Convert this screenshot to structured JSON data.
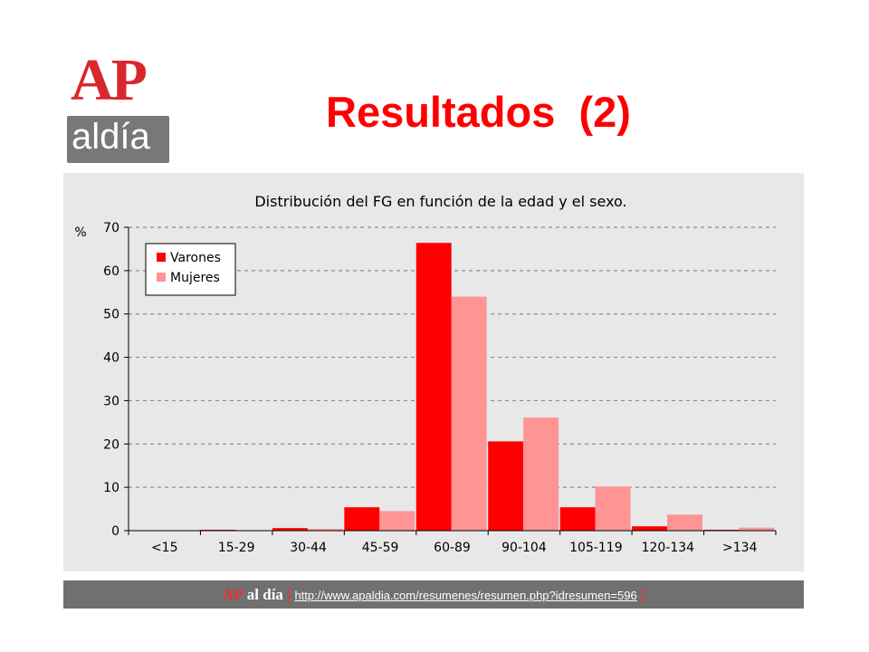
{
  "logo": {
    "top": "AP",
    "bottom": "aldía"
  },
  "page_title": "Resultados  (2)",
  "footer": {
    "brand_ap": "AP",
    "brand_aldia": "al día",
    "bracket_open": "[",
    "link": "http://www.apaldia.com/resumenes/resumen.php?idresumen=596",
    "bracket_close": "]"
  },
  "colors": {
    "title": "#ff0000",
    "varones": "#ff0000",
    "mujeres": "#ff9494",
    "panel_bg": "#e8e8e8",
    "footer_bg": "#707070"
  },
  "chart_data": {
    "type": "bar",
    "title": "Distribución del FG en función de la edad y el sexo.",
    "ylabel": "%",
    "xlabel": "",
    "categories": [
      "<15",
      "15-29",
      "30-44",
      "45-59",
      "60-89",
      "90-104",
      "105-119",
      "120-134",
      ">134"
    ],
    "series": [
      {
        "name": "Varones",
        "color": "#ff0000",
        "values": [
          0,
          0.2,
          0.6,
          5.4,
          66.4,
          20.6,
          5.4,
          1.0,
          0.2
        ]
      },
      {
        "name": "Mujeres",
        "color": "#ff9494",
        "values": [
          0,
          0.1,
          0.4,
          4.5,
          54.0,
          26.1,
          10.2,
          3.7,
          0.7
        ]
      }
    ],
    "ylim": [
      0,
      70
    ],
    "yticks": [
      0,
      10,
      20,
      30,
      40,
      50,
      60,
      70
    ],
    "grid": true,
    "legend": "top-left"
  }
}
